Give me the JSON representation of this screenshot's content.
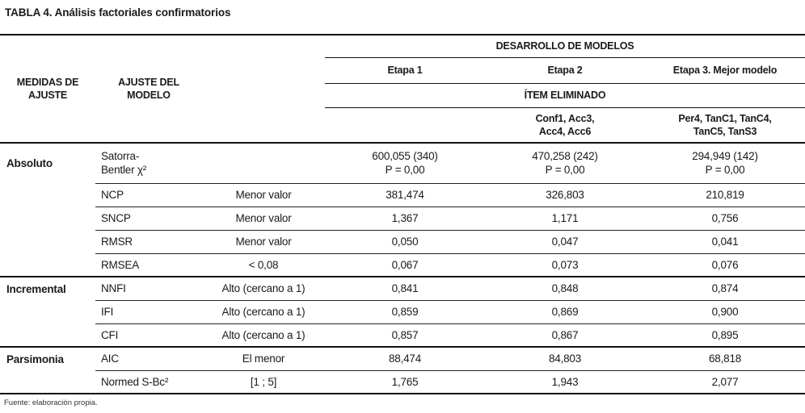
{
  "title": "TABLA 4. Análisis factoriales confirmatorios",
  "source_note": "Fuente: elaboración propia.",
  "table": {
    "left_headers": {
      "measures": "MEDIDAS DE\nAJUSTE",
      "fit": "AJUSTE DEL\nMODELO"
    },
    "span_header": "DESARROLLO DE MODELOS",
    "stage_headers": [
      "Etapa 1",
      "Etapa 2",
      "Etapa 3. Mejor modelo"
    ],
    "item_header": "ÍTEM ELIMINADO",
    "items_removed": [
      "",
      "Conf1, Acc3,\nAcc4, Acc6",
      "Per4, TanC1, TanC4,\nTanC5, TanS3"
    ],
    "rows": [
      {
        "group": "Absoluto",
        "measure": "Satorra-\nBentler χ²",
        "criterion": "",
        "values": [
          "600,055 (340)\nP = 0,00",
          "470,258 (242)\nP = 0,00",
          "294,949 (142)\nP = 0,00"
        ]
      },
      {
        "group": "",
        "measure": "NCP",
        "criterion": "Menor valor",
        "values": [
          "381,474",
          "326,803",
          "210,819"
        ]
      },
      {
        "group": "",
        "measure": "SNCP",
        "criterion": "Menor valor",
        "values": [
          "1,367",
          "1,171",
          "0,756"
        ]
      },
      {
        "group": "",
        "measure": "RMSR",
        "criterion": "Menor valor",
        "values": [
          "0,050",
          "0,047",
          "0,041"
        ]
      },
      {
        "group": "",
        "measure": "RMSEA",
        "criterion": "< 0,08",
        "values": [
          "0,067",
          "0,073",
          "0,076"
        ]
      },
      {
        "group": "Incremental",
        "measure": "NNFI",
        "criterion": "Alto (cercano a 1)",
        "values": [
          "0,841",
          "0,848",
          "0,874"
        ]
      },
      {
        "group": "",
        "measure": "IFI",
        "criterion": "Alto (cercano a 1)",
        "values": [
          "0,859",
          "0,869",
          "0,900"
        ]
      },
      {
        "group": "",
        "measure": "CFI",
        "criterion": "Alto (cercano a 1)",
        "values": [
          "0,857",
          "0,867",
          "0,895"
        ]
      },
      {
        "group": "Parsimonia",
        "measure": "AIC",
        "criterion": "El menor",
        "values": [
          "88,474",
          "84,803",
          "68,818"
        ]
      },
      {
        "group": "",
        "measure": "Normed S-Bc²",
        "criterion": "[1 ; 5]",
        "values": [
          "1,765",
          "1,943",
          "2,077"
        ]
      }
    ]
  }
}
